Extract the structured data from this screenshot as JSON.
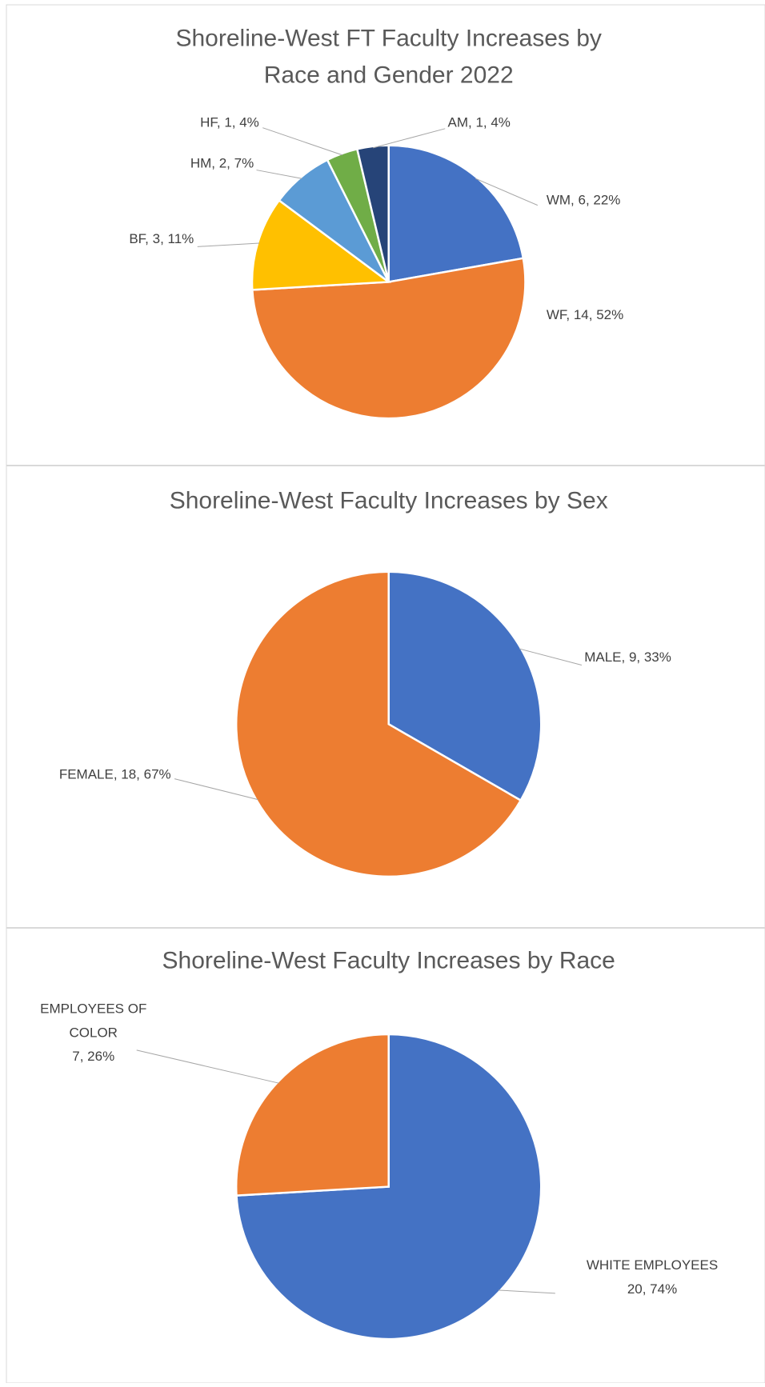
{
  "chart_data": [
    {
      "type": "pie",
      "title": [
        "Shoreline-West FT Faculty Increases by",
        "Race and Gender 2022"
      ],
      "categories": [
        "WM",
        "WF",
        "BF",
        "HM",
        "HF",
        "AM"
      ],
      "values": [
        6,
        14,
        3,
        2,
        1,
        1
      ],
      "value_labels": [
        [
          "WM, 6, 22%"
        ],
        [
          "WF, 14, 52%"
        ],
        [
          "BF, 3, 11%"
        ],
        [
          "HM, 2, 7%"
        ],
        [
          "HF, 1, 4%"
        ],
        [
          "AM, 1, 4%"
        ]
      ],
      "colors": [
        "#4472c4",
        "#ed7d31",
        "#ffc000",
        "#5b9bd5",
        "#70ad47",
        "#264478"
      ]
    },
    {
      "type": "pie",
      "title": [
        "Shoreline-West Faculty Increases by Sex"
      ],
      "categories": [
        "MALE",
        "FEMALE"
      ],
      "values": [
        9,
        18
      ],
      "value_labels": [
        [
          "MALE, 9, 33%"
        ],
        [
          "FEMALE, 18, 67%"
        ]
      ],
      "colors": [
        "#4472c4",
        "#ed7d31"
      ]
    },
    {
      "type": "pie",
      "title": [
        "Shoreline-West Faculty Increases by Race"
      ],
      "categories": [
        "WHITE EMPLOYEES",
        "EMPLOYEES OF COLOR"
      ],
      "values": [
        20,
        7
      ],
      "value_labels": [
        [
          "WHITE EMPLOYEES",
          "20, 74%"
        ],
        [
          "EMPLOYEES OF",
          "COLOR",
          "7, 26%"
        ]
      ],
      "colors": [
        "#4472c4",
        "#ed7d31"
      ]
    }
  ]
}
